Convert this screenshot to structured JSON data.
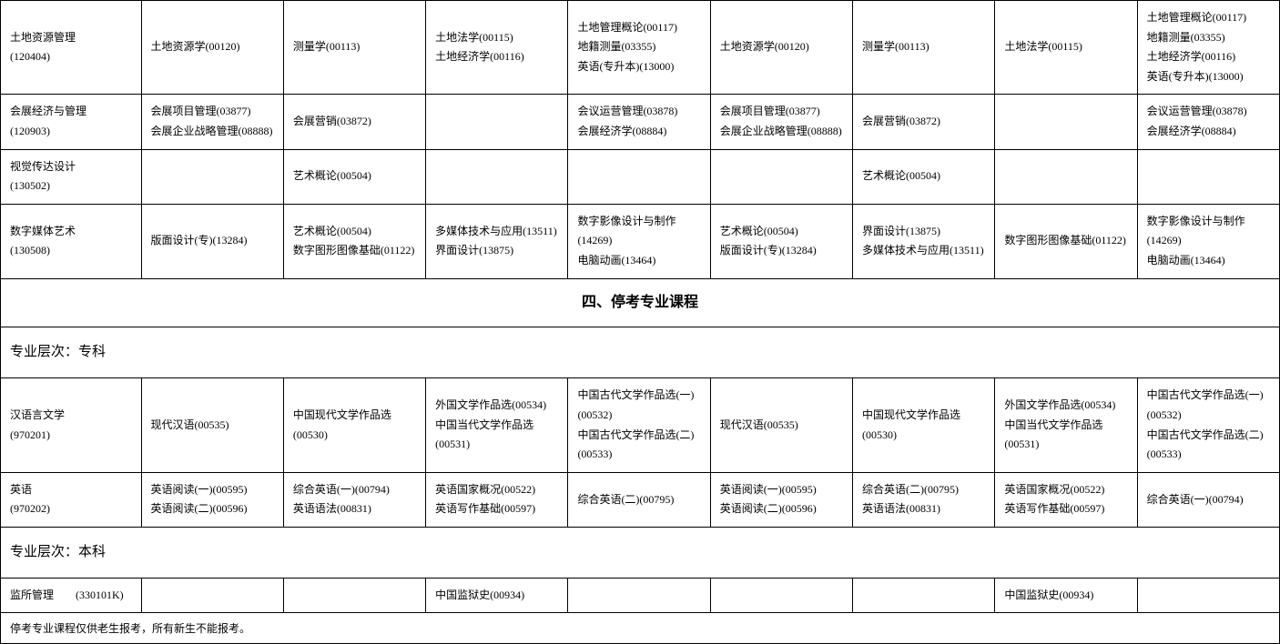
{
  "rows1": [
    {
      "major": "土地资源管理\n(120404)",
      "c1": "土地资源学(00120)",
      "c2": "测量学(00113)",
      "c3": "土地法学(00115)\n土地经济学(00116)",
      "c4": "土地管理概论(00117)\n地籍测量(03355)\n英语(专升本)(13000)",
      "c5": "土地资源学(00120)",
      "c6": "测量学(00113)",
      "c7": "土地法学(00115)",
      "c8": "土地管理概论(00117)\n地籍测量(03355)\n土地经济学(00116)\n英语(专升本)(13000)"
    },
    {
      "major": "会展经济与管理\n(120903)",
      "c1": "会展项目管理(03877)\n会展企业战略管理(08888)",
      "c2": "会展营销(03872)",
      "c3": "",
      "c4": "会议运营管理(03878)\n会展经济学(08884)",
      "c5": "会展项目管理(03877)\n会展企业战略管理(08888)",
      "c6": "会展营销(03872)",
      "c7": "",
      "c8": "会议运营管理(03878)\n会展经济学(08884)"
    },
    {
      "major": "视觉传达设计\n(130502)",
      "c1": "",
      "c2": "艺术概论(00504)",
      "c3": "",
      "c4": "",
      "c5": "",
      "c6": "艺术概论(00504)",
      "c7": "",
      "c8": ""
    },
    {
      "major": "数字媒体艺术\n(130508)",
      "c1": "版面设计(专)(13284)",
      "c2": "艺术概论(00504)\n数字图形图像基础(01122)",
      "c3": "多媒体技术与应用(13511)\n界面设计(13875)",
      "c4": "数字影像设计与制作(14269)\n电脑动画(13464)",
      "c5": "艺术概论(00504)\n版面设计(专)(13284)",
      "c6": "界面设计(13875)\n多媒体技术与应用(13511)",
      "c7": "数字图形图像基础(01122)",
      "c8": "数字影像设计与制作(14269)\n电脑动画(13464)"
    }
  ],
  "section_heading": "四、停考专业课程",
  "level_zhuanke": "专业层次：专科",
  "rows2": [
    {
      "major": "汉语言文学\n(970201)",
      "c1": "现代汉语(00535)",
      "c2": "中国现代文学作品选(00530)",
      "c3": "外国文学作品选(00534)\n中国当代文学作品选(00531)",
      "c4": "中国古代文学作品选(一)(00532)\n中国古代文学作品选(二)(00533)",
      "c5": "现代汉语(00535)",
      "c6": "中国现代文学作品选(00530)",
      "c7": "外国文学作品选(00534)\n中国当代文学作品选(00531)",
      "c8": "中国古代文学作品选(一)(00532)\n中国古代文学作品选(二)(00533)"
    },
    {
      "major": "英语\n(970202)",
      "c1": "英语阅读(一)(00595)\n英语阅读(二)(00596)",
      "c2": "综合英语(一)(00794)\n英语语法(00831)",
      "c3": "英语国家概况(00522)\n英语写作基础(00597)",
      "c4": "综合英语(二)(00795)",
      "c5": "英语阅读(一)(00595)\n英语阅读(二)(00596)",
      "c6": "综合英语(二)(00795)\n英语语法(00831)",
      "c7": "英语国家概况(00522)\n英语写作基础(00597)",
      "c8": "综合英语(一)(00794)"
    }
  ],
  "level_benke": "专业层次：本科",
  "rows3": [
    {
      "major": "监所管理　　(330101K)",
      "c1": "",
      "c2": "",
      "c3": "中国监狱史(00934)",
      "c4": "",
      "c5": "",
      "c6": "",
      "c7": "中国监狱史(00934)",
      "c8": ""
    }
  ],
  "footer_note": "停考专业课程仅供老生报考，所有新生不能报考。"
}
